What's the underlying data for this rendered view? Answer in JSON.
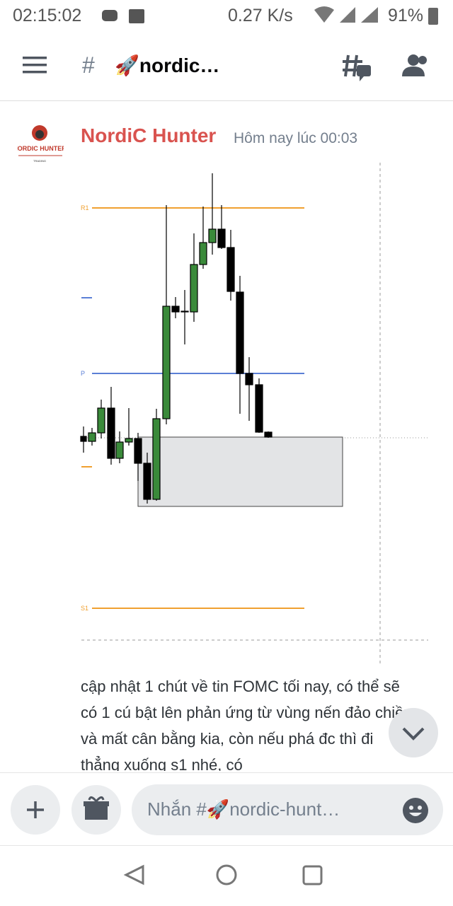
{
  "status_bar": {
    "time": "02:15:02",
    "speed": "0.27 K/s",
    "battery": "91%"
  },
  "header": {
    "hash": "#",
    "channel": "🚀nordic…"
  },
  "message": {
    "avatar_title": "NORDIC HUNTER",
    "avatar_subtitle": "TRADING",
    "author": "NordiC Hunter",
    "timestamp": "Hôm nay lúc 00:03",
    "chart_labels": [
      "R1",
      "P",
      "S1"
    ],
    "text": "cập nhật 1 chút về tin FOMC tối nay, có thể sẽ có 1 cú bật lên phản ứng từ vùng nến đảo chiều và mất cân bằng kia, còn nếu phá đc thì đi thẳng xuống s1 nhé, có"
  },
  "composer": {
    "placeholder": "Nhắn #🚀nordic-hunt…"
  }
}
